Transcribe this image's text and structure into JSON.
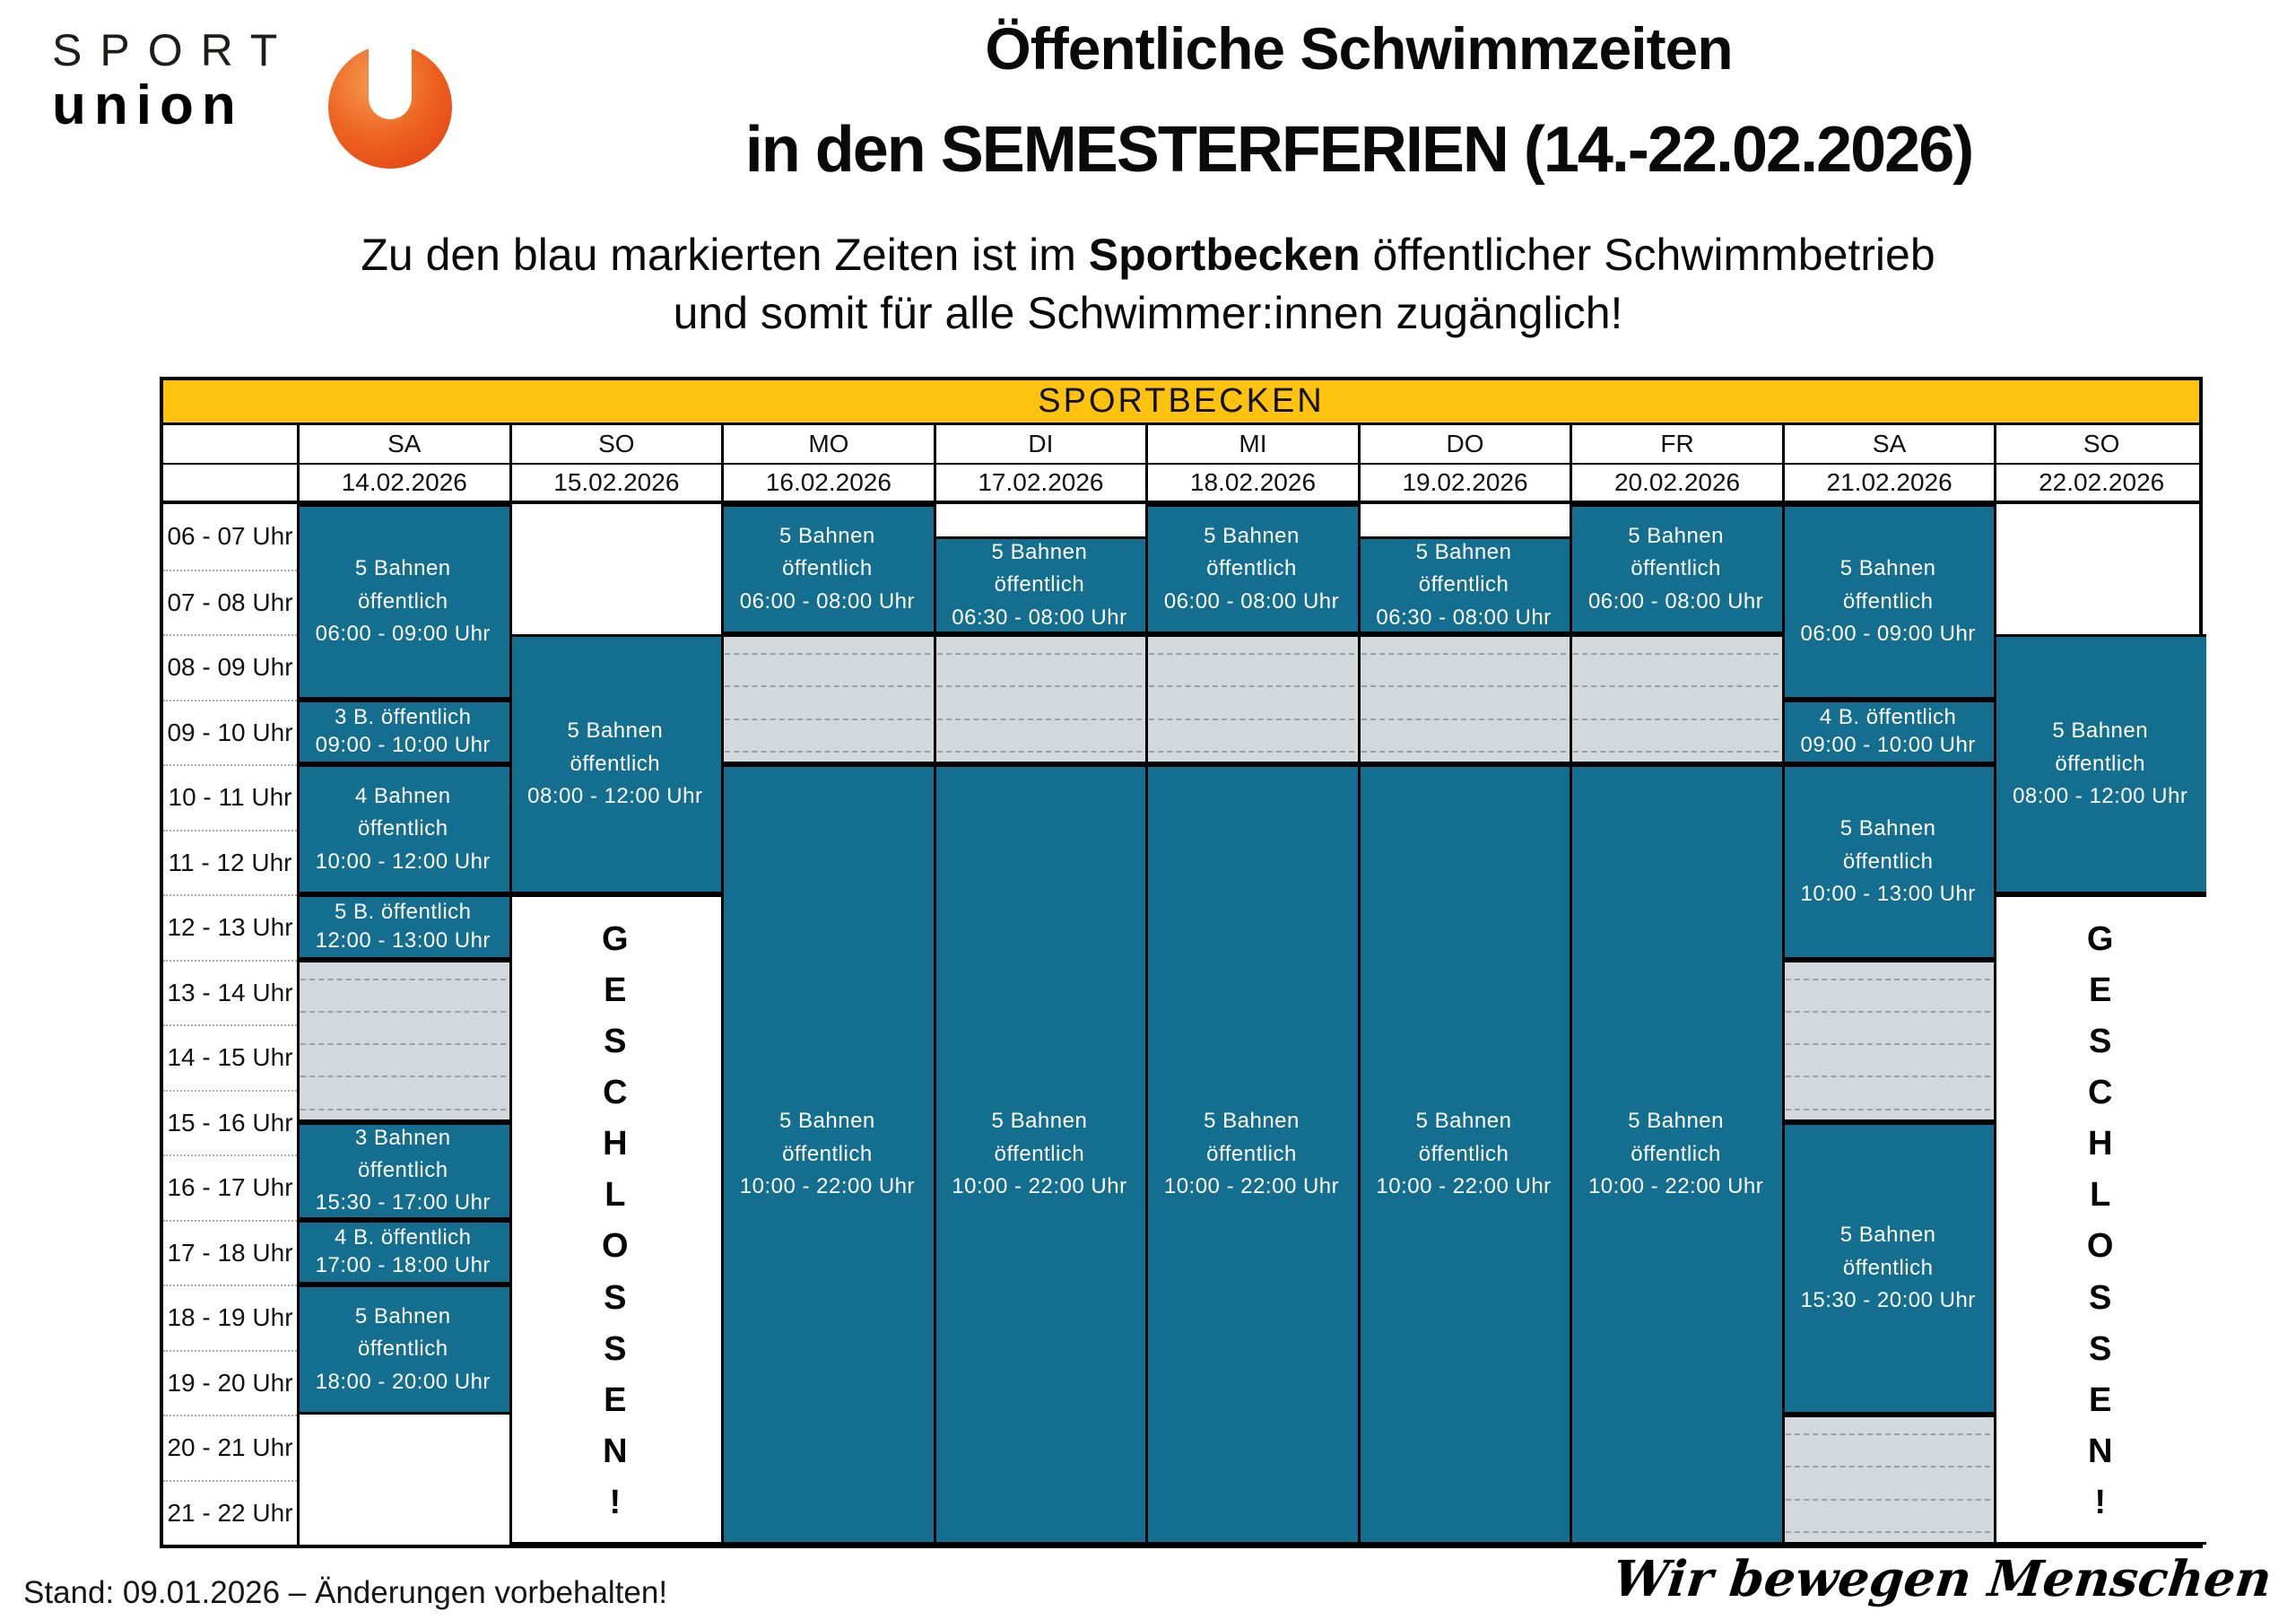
{
  "colors": {
    "teal": "#136E90",
    "yellow": "#FFC20E",
    "stripe_bg": "#D3D8DC",
    "stripe_line": "#9AA0A4"
  },
  "logo": {
    "line1": "SPORT",
    "line2": "union",
    "badge": "U"
  },
  "title": {
    "line1": "Öffentliche Schwimmzeiten",
    "line2": "in den SEMESTERFERIEN (14.-22.02.2026)"
  },
  "subtitle": {
    "line1_pre": "Zu den blau markierten Zeiten ist im ",
    "line1_bold": "Sportbecken",
    "line1_post": " öffentlicher Schwimmbetrieb",
    "line2": "und somit für alle Schwimmer:innen zugänglich!"
  },
  "table": {
    "pool_label": "SPORTBECKEN",
    "time_rows": [
      "06 - 07 Uhr",
      "07 - 08 Uhr",
      "08 - 09 Uhr",
      "09 - 10 Uhr",
      "10 - 11 Uhr",
      "11 - 12 Uhr",
      "12 - 13 Uhr",
      "13 - 14 Uhr",
      "14 - 15 Uhr",
      "15 - 16 Uhr",
      "16 - 17 Uhr",
      "17 - 18 Uhr",
      "18 - 19 Uhr",
      "19 - 20 Uhr",
      "20 - 21 Uhr",
      "21 - 22 Uhr"
    ],
    "columns": [
      {
        "day": "SA",
        "date": "14.02.2026",
        "blocks": [
          {
            "type": "open",
            "start": 6,
            "end": 9,
            "lines": [
              "5 Bahnen",
              "öffentlich",
              "06:00 - 09:00 Uhr"
            ]
          },
          {
            "type": "open",
            "start": 9,
            "end": 10,
            "lines": [
              "3 B. öffentlich",
              "09:00 - 10:00 Uhr"
            ]
          },
          {
            "type": "open",
            "start": 10,
            "end": 12,
            "lines": [
              "4 Bahnen",
              "öffentlich",
              "10:00 - 12:00 Uhr"
            ]
          },
          {
            "type": "open",
            "start": 12,
            "end": 13,
            "lines": [
              "5 B. öffentlich",
              "12:00 - 13:00 Uhr"
            ]
          },
          {
            "type": "striped",
            "start": 13,
            "end": 15.5
          },
          {
            "type": "open",
            "start": 15.5,
            "end": 17,
            "lines": [
              "3 Bahnen",
              "öffentlich",
              "15:30 - 17:00 Uhr"
            ]
          },
          {
            "type": "open",
            "start": 17,
            "end": 18,
            "lines": [
              "4 B. öffentlich",
              "17:00 - 18:00 Uhr"
            ]
          },
          {
            "type": "open",
            "start": 18,
            "end": 20,
            "lines": [
              "5 Bahnen",
              "öffentlich",
              "18:00 - 20:00 Uhr"
            ]
          }
        ]
      },
      {
        "day": "SO",
        "date": "15.02.2026",
        "blocks": [
          {
            "type": "open",
            "start": 8,
            "end": 12,
            "lines": [
              "5 Bahnen",
              "öffentlich",
              "08:00 - 12:00 Uhr"
            ]
          },
          {
            "type": "closed",
            "start": 12,
            "end": 22,
            "label": "GESCHLOSSEN!"
          }
        ]
      },
      {
        "day": "MO",
        "date": "16.02.2026",
        "blocks": [
          {
            "type": "open",
            "start": 6,
            "end": 8,
            "lines": [
              "5 Bahnen",
              "öffentlich",
              "06:00 - 08:00 Uhr"
            ]
          },
          {
            "type": "striped",
            "start": 8,
            "end": 10
          },
          {
            "type": "open",
            "start": 10,
            "end": 22,
            "lines": [
              "5 Bahnen",
              "öffentlich",
              "10:00 - 22:00 Uhr"
            ]
          }
        ]
      },
      {
        "day": "DI",
        "date": "17.02.2026",
        "blocks": [
          {
            "type": "open",
            "start": 6.5,
            "end": 8,
            "lines": [
              "5 Bahnen",
              "öffentlich",
              "06:30 - 08:00 Uhr"
            ]
          },
          {
            "type": "striped",
            "start": 8,
            "end": 10
          },
          {
            "type": "open",
            "start": 10,
            "end": 22,
            "lines": [
              "5 Bahnen",
              "öffentlich",
              "10:00 - 22:00 Uhr"
            ]
          }
        ]
      },
      {
        "day": "MI",
        "date": "18.02.2026",
        "blocks": [
          {
            "type": "open",
            "start": 6,
            "end": 8,
            "lines": [
              "5 Bahnen",
              "öffentlich",
              "06:00 - 08:00 Uhr"
            ]
          },
          {
            "type": "striped",
            "start": 8,
            "end": 10
          },
          {
            "type": "open",
            "start": 10,
            "end": 22,
            "lines": [
              "5 Bahnen",
              "öffentlich",
              "10:00 - 22:00 Uhr"
            ]
          }
        ]
      },
      {
        "day": "DO",
        "date": "19.02.2026",
        "blocks": [
          {
            "type": "open",
            "start": 6.5,
            "end": 8,
            "lines": [
              "5 Bahnen",
              "öffentlich",
              "06:30 - 08:00 Uhr"
            ]
          },
          {
            "type": "striped",
            "start": 8,
            "end": 10
          },
          {
            "type": "open",
            "start": 10,
            "end": 22,
            "lines": [
              "5 Bahnen",
              "öffentlich",
              "10:00 - 22:00 Uhr"
            ]
          }
        ]
      },
      {
        "day": "FR",
        "date": "20.02.2026",
        "blocks": [
          {
            "type": "open",
            "start": 6,
            "end": 8,
            "lines": [
              "5 Bahnen",
              "öffentlich",
              "06:00 - 08:00 Uhr"
            ]
          },
          {
            "type": "striped",
            "start": 8,
            "end": 10
          },
          {
            "type": "open",
            "start": 10,
            "end": 22,
            "lines": [
              "5 Bahnen",
              "öffentlich",
              "10:00 - 22:00 Uhr"
            ]
          }
        ]
      },
      {
        "day": "SA",
        "date": "21.02.2026",
        "blocks": [
          {
            "type": "open",
            "start": 6,
            "end": 9,
            "lines": [
              "5 Bahnen",
              "öffentlich",
              "06:00 - 09:00 Uhr"
            ]
          },
          {
            "type": "open",
            "start": 9,
            "end": 10,
            "lines": [
              "4 B. öffentlich",
              "09:00 - 10:00 Uhr"
            ]
          },
          {
            "type": "open",
            "start": 10,
            "end": 13,
            "lines": [
              "5 Bahnen",
              "öffentlich",
              "10:00 - 13:00 Uhr"
            ]
          },
          {
            "type": "striped",
            "start": 13,
            "end": 15.5
          },
          {
            "type": "open",
            "start": 15.5,
            "end": 20,
            "lines": [
              "5 Bahnen",
              "öffentlich",
              "15:30 - 20:00 Uhr"
            ]
          },
          {
            "type": "striped",
            "start": 20,
            "end": 22
          }
        ]
      },
      {
        "day": "SO",
        "date": "22.02.2026",
        "blocks": [
          {
            "type": "open",
            "start": 8,
            "end": 12,
            "lines": [
              "5 Bahnen",
              "öffentlich",
              "08:00 - 12:00 Uhr"
            ]
          },
          {
            "type": "closed",
            "start": 12,
            "end": 22,
            "label": "GESCHLOSSEN!"
          }
        ]
      }
    ]
  },
  "footer": {
    "stand": "Stand: 09.01.2026 – Änderungen vorbehalten!",
    "slogan": "Wir bewegen Menschen"
  }
}
